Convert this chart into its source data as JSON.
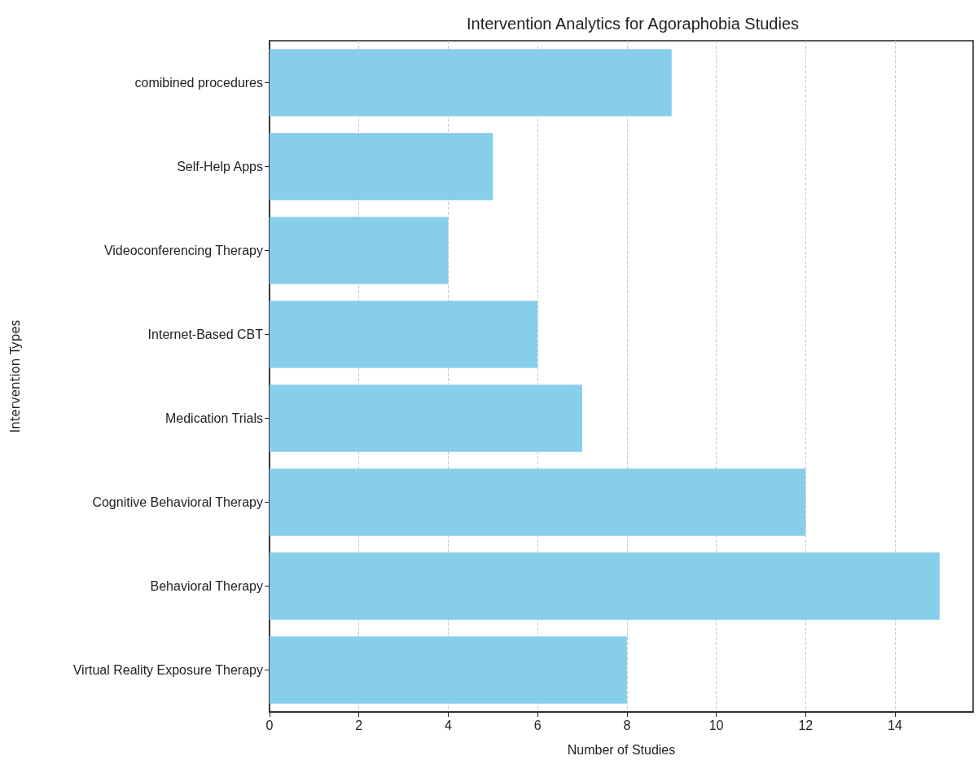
{
  "chart_data": {
    "type": "bar",
    "orientation": "horizontal",
    "title": "Intervention Analytics for Agoraphobia Studies",
    "xlabel": "Number of Studies",
    "ylabel": "Intervention Types",
    "categories": [
      "comibined procedures",
      "Self-Help Apps",
      "Videoconferencing Therapy",
      "Internet-Based CBT",
      "Medication Trials",
      "Cognitive Behavioral Therapy",
      "Behavioral Therapy",
      "Virtual Reality Exposure Therapy"
    ],
    "values": [
      9,
      5,
      4,
      6,
      7,
      12,
      15,
      8
    ],
    "color": "#87ceeb",
    "xlim": [
      0,
      15.75
    ],
    "xticks": [
      0,
      2,
      4,
      6,
      8,
      10,
      12,
      14
    ],
    "grid": "x"
  }
}
